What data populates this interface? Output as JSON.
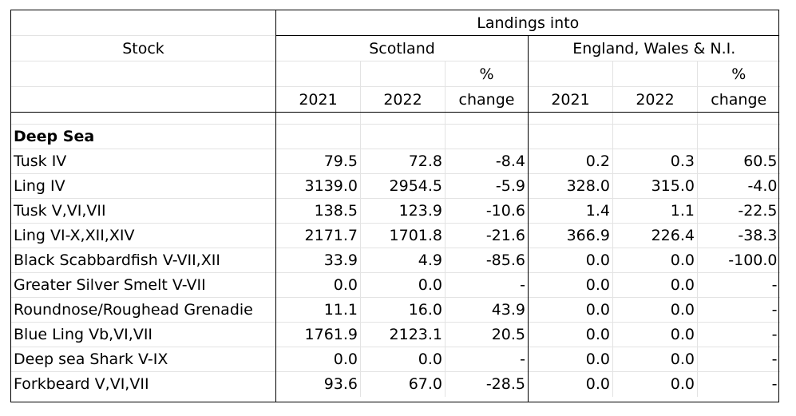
{
  "header": {
    "stock_label": "Stock",
    "landings_label": "Landings into",
    "scotland_label": "Scotland",
    "ewni_label": "England, Wales & N.I.",
    "pct_label": "%",
    "change_label": "change",
    "year1": "2021",
    "year2": "2022"
  },
  "section": "Deep Sea",
  "rows": [
    {
      "stock": "Tusk IV",
      "s21": "79.5",
      "s22": "72.8",
      "sch": "-8.4",
      "e21": "0.2",
      "e22": "0.3",
      "ech": "60.5"
    },
    {
      "stock": "Ling IV",
      "s21": "3139.0",
      "s22": "2954.5",
      "sch": "-5.9",
      "e21": "328.0",
      "e22": "315.0",
      "ech": "-4.0"
    },
    {
      "stock": "Tusk V,VI,VII",
      "s21": "138.5",
      "s22": "123.9",
      "sch": "-10.6",
      "e21": "1.4",
      "e22": "1.1",
      "ech": "-22.5"
    },
    {
      "stock": "Ling VI-X,XII,XIV",
      "s21": "2171.7",
      "s22": "1701.8",
      "sch": "-21.6",
      "e21": "366.9",
      "e22": "226.4",
      "ech": "-38.3"
    },
    {
      "stock": "Black Scabbardfish V-VII,XII",
      "s21": "33.9",
      "s22": "4.9",
      "sch": "-85.6",
      "e21": "0.0",
      "e22": "0.0",
      "ech": "-100.0"
    },
    {
      "stock": "Greater Silver Smelt V-VII",
      "s21": "0.0",
      "s22": "0.0",
      "sch": "-",
      "e21": "0.0",
      "e22": "0.0",
      "ech": "-"
    },
    {
      "stock": "Roundnose/Roughead Grenadie",
      "s21": "11.1",
      "s22": "16.0",
      "sch": "43.9",
      "e21": "0.0",
      "e22": "0.0",
      "ech": "-"
    },
    {
      "stock": "Blue Ling Vb,VI,VII",
      "s21": "1761.9",
      "s22": "2123.1",
      "sch": "20.5",
      "e21": "0.0",
      "e22": "0.0",
      "ech": "-"
    },
    {
      "stock": "Deep sea Shark V-IX",
      "s21": "0.0",
      "s22": "0.0",
      "sch": "-",
      "e21": "0.0",
      "e22": "0.0",
      "ech": "-"
    },
    {
      "stock": "Forkbeard V,VI,VII",
      "s21": "93.6",
      "s22": "67.0",
      "sch": "-28.5",
      "e21": "0.0",
      "e22": "0.0",
      "ech": "-"
    }
  ]
}
